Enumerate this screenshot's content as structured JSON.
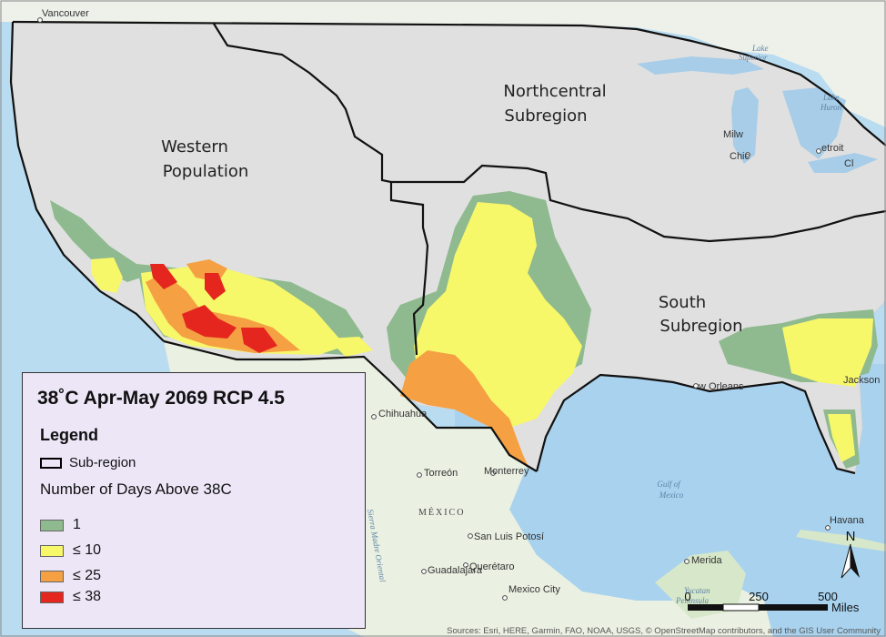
{
  "map": {
    "title": "38˚C Apr-May 2069 RCP 4.5",
    "regions": {
      "western": [
        "Western",
        "Population"
      ],
      "northcentral": [
        "Northcentral",
        "Subregion"
      ],
      "south": [
        "South",
        "Subregion"
      ]
    },
    "places": {
      "vancouver": "Vancouver",
      "milwaukee": "Milw",
      "chicago": "Chic",
      "detroit": "etroit",
      "cleveland": "Cl",
      "new_orleans": "w Orleans",
      "jacksonville": "Jackson",
      "chihuahua": "Chihuahua",
      "torreon": "Torreón",
      "monterrey": "Monterrey",
      "mexico": "MÉXICO",
      "san_luis_potosi": "San Luis Potosí",
      "guadalajara": "Guadalajara",
      "queretaro": "Querétaro",
      "mexico_city": "Mexico City",
      "havana": "Havana",
      "merida": "Merida",
      "yucatan_1": "Yucatan",
      "yucatan_2": "Peninsula"
    },
    "water": {
      "lake_superior_1": "Lake",
      "lake_superior_2": "Superior",
      "lake_huron_1": "Lake",
      "lake_huron_2": "Huron",
      "gulf_1": "Gulf of",
      "gulf_2": "Mexico",
      "sierra": "Sierra Madre Oriental"
    }
  },
  "legend": {
    "heading": "Legend",
    "subregion_label": "Sub-region",
    "days_heading": "Number of Days Above 38C",
    "items": [
      {
        "label": "1",
        "color": "#8fba8f"
      },
      {
        "label": "≤ 10",
        "color": "#f7f76a"
      },
      {
        "label": "≤ 25",
        "color": "#f5a043"
      },
      {
        "label": "≤ 38",
        "color": "#e4261f"
      }
    ]
  },
  "north_arrow": {
    "label": "N"
  },
  "scalebar": {
    "ticks": [
      "0",
      "250",
      "500"
    ],
    "unit": "Miles"
  },
  "attribution": "Sources: Esri, HERE, Garmin, FAO, NOAA, USGS, © OpenStreetMap contributors, and the GIS User Community"
}
